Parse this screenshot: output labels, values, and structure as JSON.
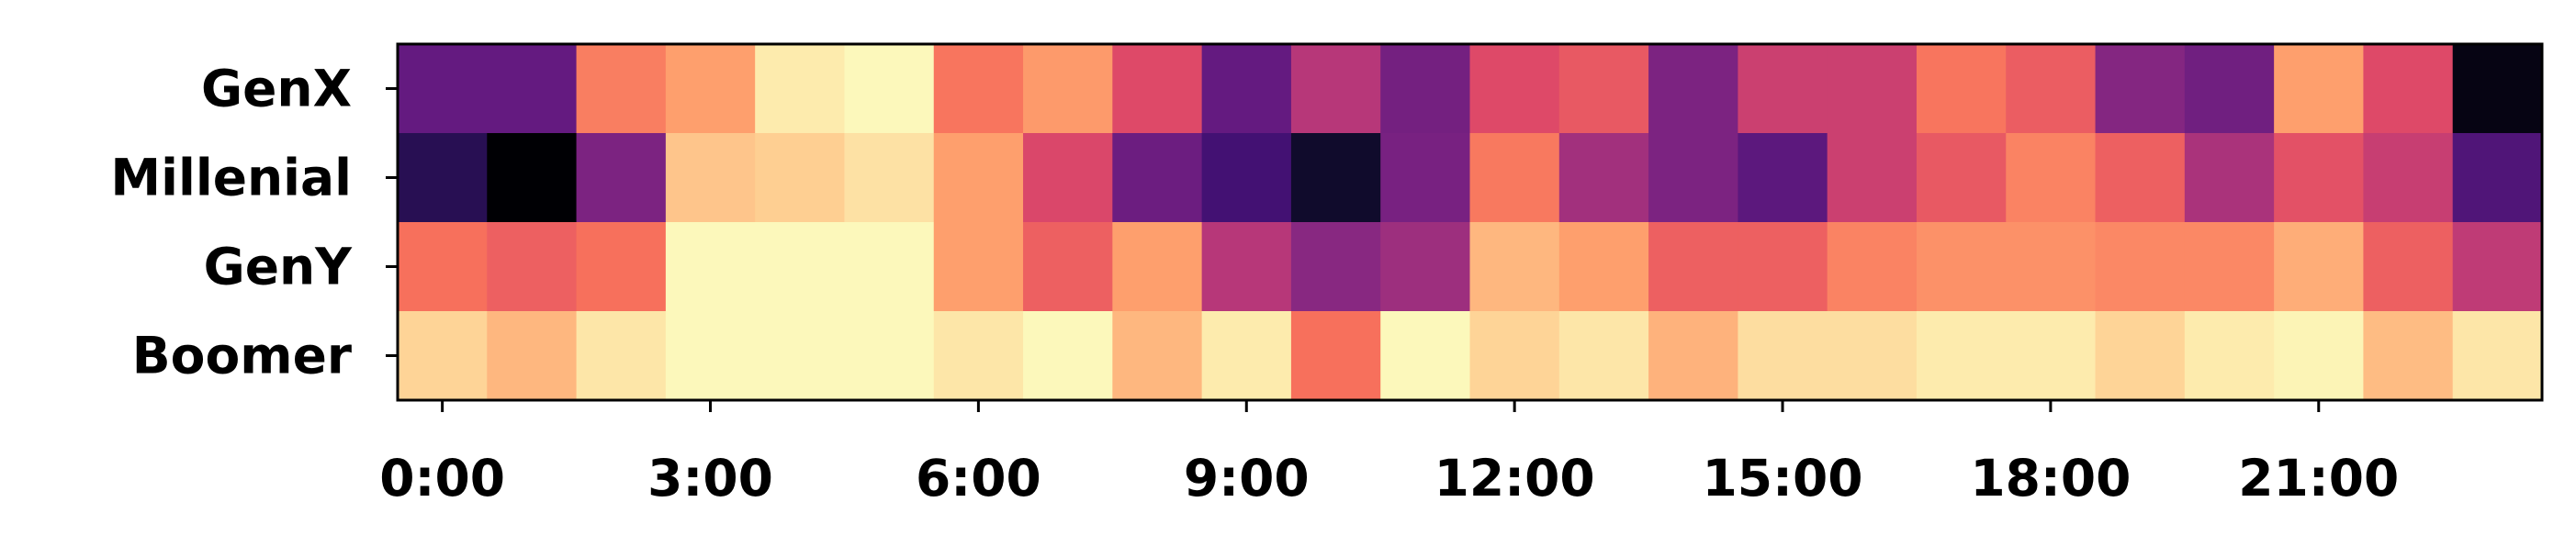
{
  "chart_data": {
    "type": "heatmap",
    "colormap": "magma",
    "value_range": [
      0,
      1
    ],
    "categories_y": [
      "GenX",
      "Millenial",
      "GenY",
      "Boomer"
    ],
    "x_ticks": [
      "0:00",
      "3:00",
      "6:00",
      "9:00",
      "12:00",
      "15:00",
      "18:00",
      "21:00"
    ],
    "x_tick_hours": [
      0,
      3,
      6,
      9,
      12,
      15,
      18,
      21
    ],
    "hours": [
      0,
      1,
      2,
      3,
      4,
      5,
      6,
      7,
      8,
      9,
      10,
      11,
      12,
      13,
      14,
      15,
      16,
      17,
      18,
      19,
      20,
      21,
      22,
      23
    ],
    "values": [
      [
        0.3,
        0.3,
        0.73,
        0.8,
        0.96,
        0.99,
        0.71,
        0.79,
        0.6,
        0.3,
        0.5,
        0.34,
        0.6,
        0.64,
        0.36,
        0.55,
        0.55,
        0.71,
        0.65,
        0.38,
        0.33,
        0.8,
        0.6,
        0.03
      ],
      [
        0.15,
        0.0,
        0.36,
        0.88,
        0.9,
        0.94,
        0.8,
        0.59,
        0.32,
        0.22,
        0.08,
        0.35,
        0.72,
        0.45,
        0.36,
        0.28,
        0.55,
        0.64,
        0.74,
        0.66,
        0.47,
        0.62,
        0.54,
        0.25
      ],
      [
        0.7,
        0.66,
        0.7,
        0.99,
        0.99,
        0.99,
        0.8,
        0.66,
        0.8,
        0.5,
        0.39,
        0.44,
        0.85,
        0.8,
        0.66,
        0.66,
        0.74,
        0.77,
        0.77,
        0.75,
        0.75,
        0.83,
        0.66,
        0.52
      ],
      [
        0.91,
        0.85,
        0.95,
        0.99,
        0.99,
        0.99,
        0.95,
        0.99,
        0.85,
        0.96,
        0.7,
        0.99,
        0.91,
        0.95,
        0.84,
        0.93,
        0.93,
        0.96,
        0.96,
        0.91,
        0.96,
        0.98,
        0.86,
        0.95
      ]
    ],
    "xlabel": "",
    "ylabel": "",
    "title": "",
    "grid": false,
    "legend": "none"
  }
}
